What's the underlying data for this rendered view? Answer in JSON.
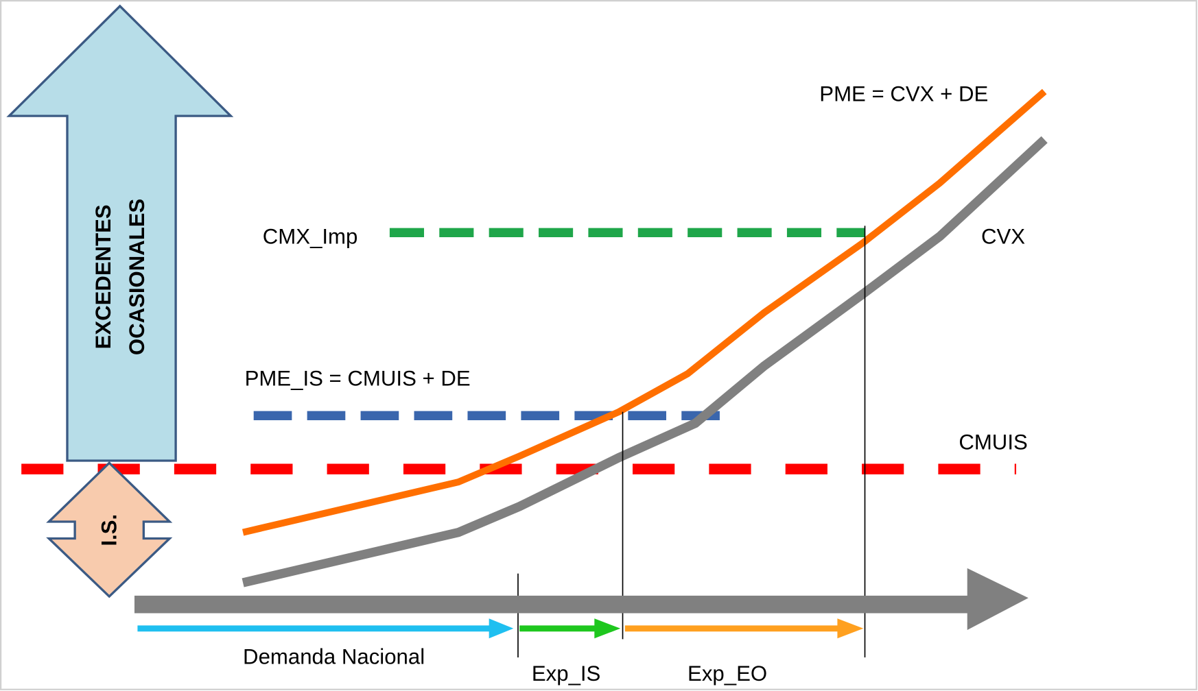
{
  "arrows": {
    "excedentes": [
      "EXCEDENTES",
      "OCASIONALES"
    ],
    "is": "I.S."
  },
  "curves": {
    "pme": "PME = CVX + DE",
    "cvx": "CVX"
  },
  "levels": {
    "cmx_imp": "CMX_Imp",
    "pme_is": "PME_IS = CMUIS + DE",
    "cmuis": "CMUIS"
  },
  "segments": [
    "Demanda Nacional",
    "Exp_IS",
    "Exp_EO"
  ]
}
